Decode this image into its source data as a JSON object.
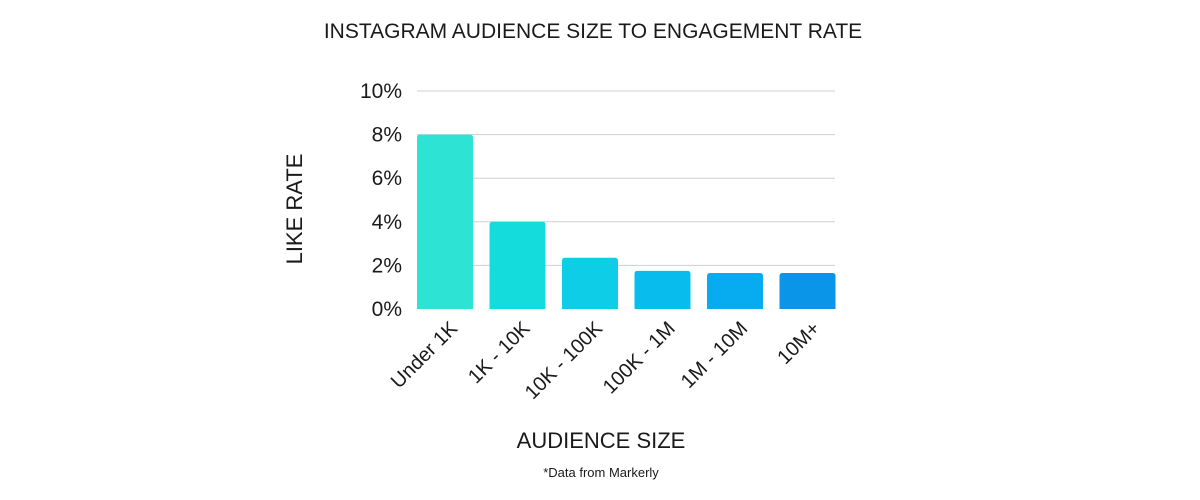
{
  "chart_data": {
    "type": "bar",
    "title": "INSTAGRAM AUDIENCE SIZE TO ENGAGEMENT RATE",
    "xlabel": "AUDIENCE SIZE",
    "ylabel": "LIKE RATE",
    "categories": [
      "Under 1K",
      "1K - 10K",
      "10K - 100K",
      "100K - 1M",
      "1M - 10M",
      "10M+"
    ],
    "values": [
      8.0,
      4.0,
      2.35,
      1.75,
      1.65,
      1.65
    ],
    "ylim": [
      0,
      10
    ],
    "yticks": [
      0,
      2,
      4,
      6,
      8,
      10
    ],
    "ytick_labels": [
      "0%",
      "2%",
      "4%",
      "6%",
      "8%",
      "10%"
    ],
    "grid": true,
    "bar_colors": [
      "#2de3d3",
      "#14dbdc",
      "#0ecde6",
      "#08bdee",
      "#07abf0",
      "#0a95e8"
    ],
    "footnote": "*Data from Markerly"
  }
}
